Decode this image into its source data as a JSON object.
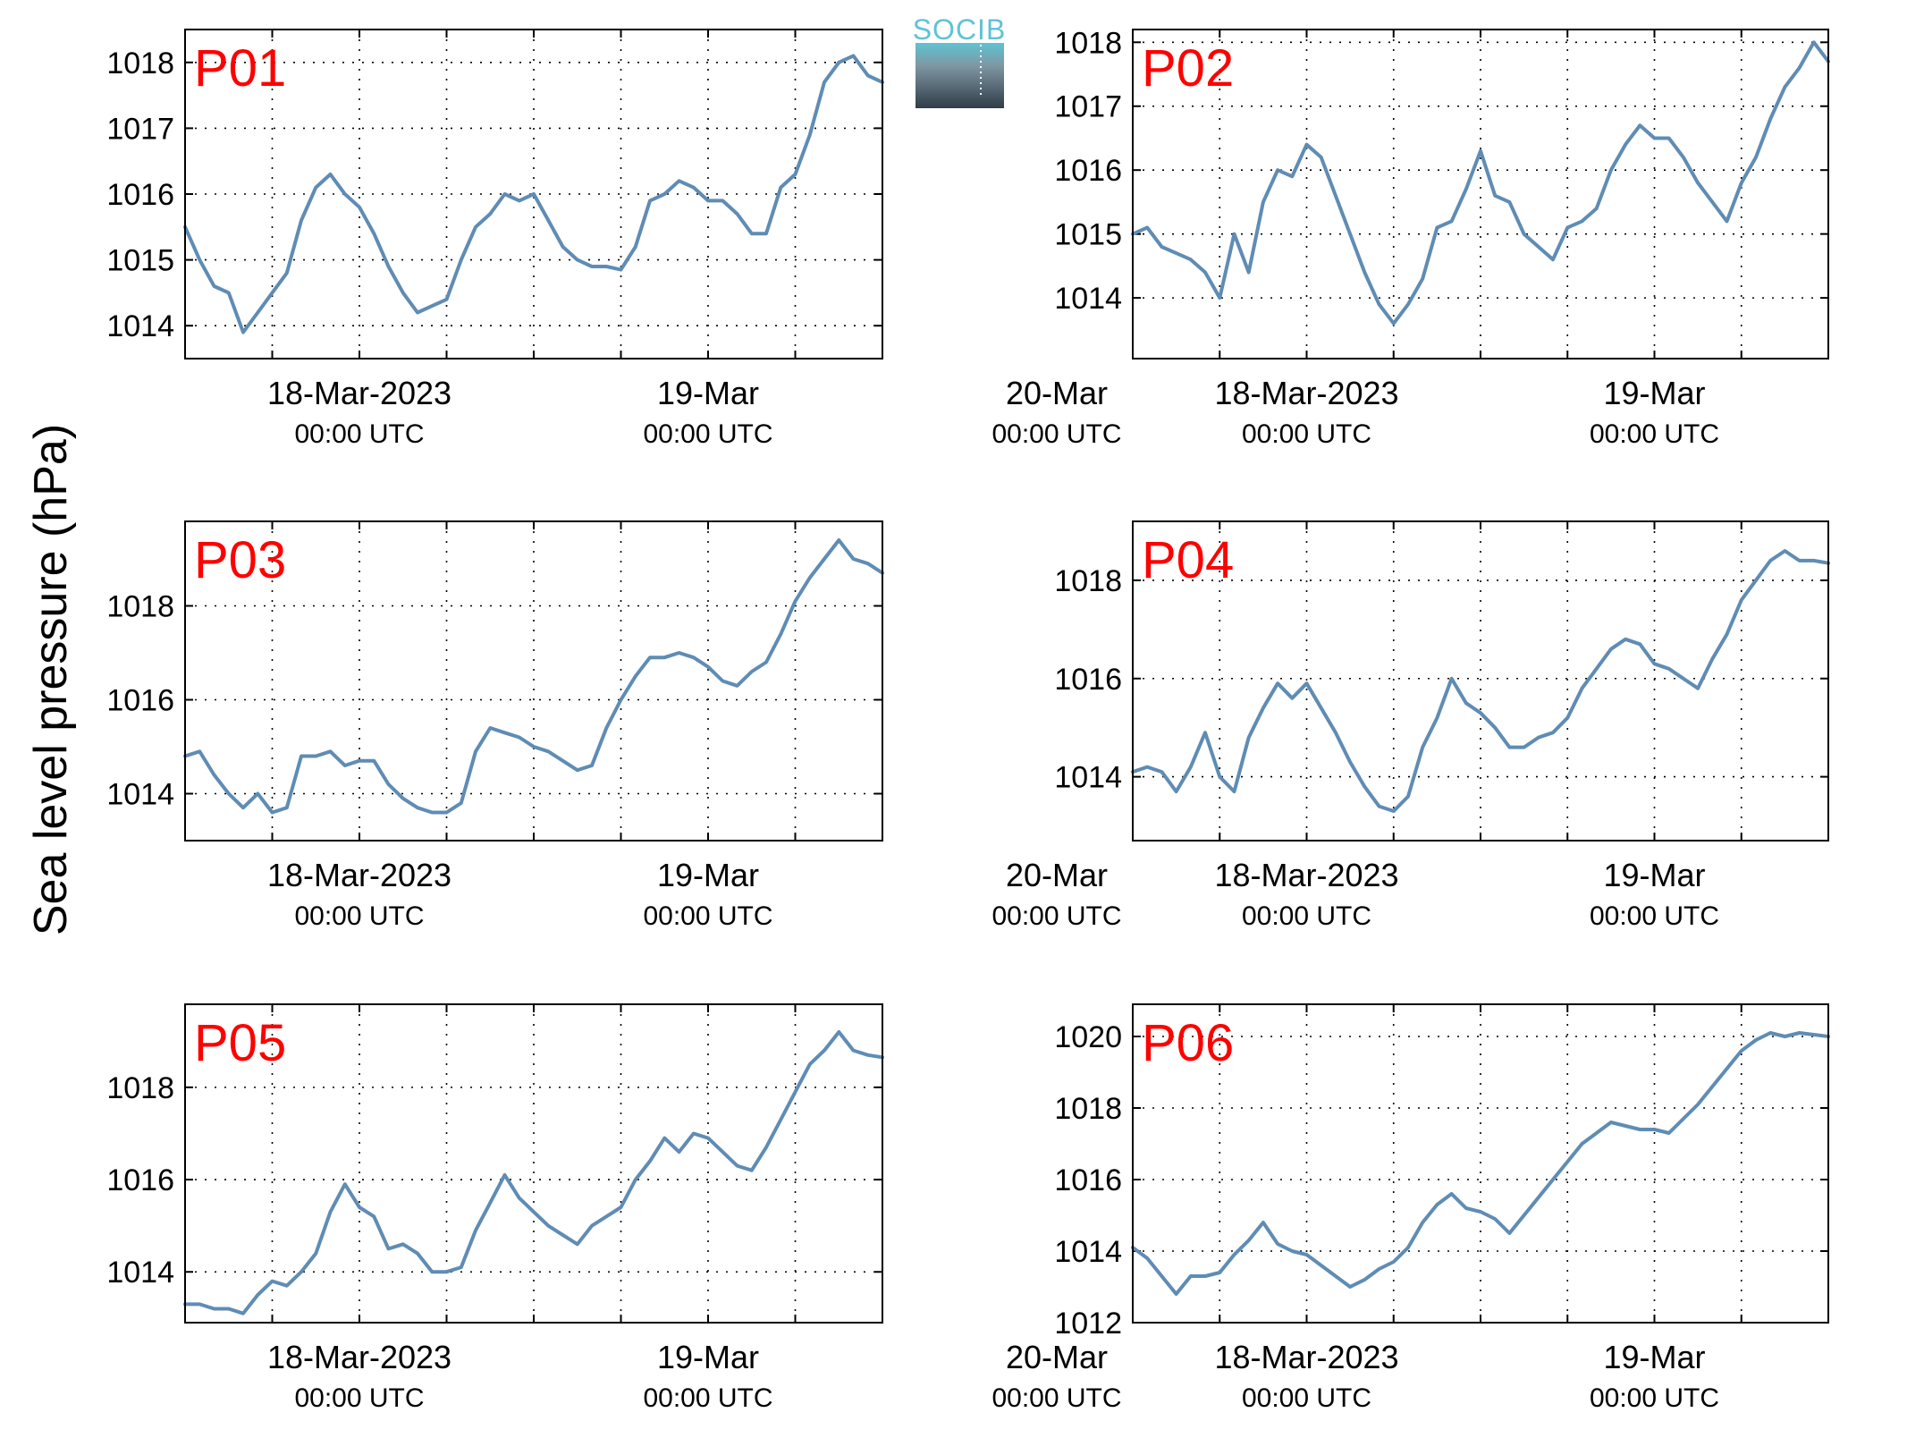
{
  "figure": {
    "ylabel": "Sea level pressure (hPa)",
    "logo_text": "SOCIB",
    "colors": {
      "line": "#5f8cb4",
      "panel_label": "#ff0000",
      "grid": "#000000"
    }
  },
  "chart_data": [
    {
      "type": "line",
      "title": "P01",
      "xlabel": "",
      "ylabel": "Sea level pressure (hPa)",
      "x_unit": "hours since 18-Mar-2023 00:00 UTC",
      "xlim": [
        -12,
        36
      ],
      "ylim": [
        1013.5,
        1018.5
      ],
      "yticks": [
        1014,
        1015,
        1016,
        1017,
        1018
      ],
      "xtick_labels": [
        {
          "x": 0,
          "main": "18-Mar-2023",
          "sub": "00:00 UTC"
        },
        {
          "x": 24,
          "main": "19-Mar",
          "sub": "00:00 UTC"
        },
        {
          "x": 48,
          "main": "20-Mar",
          "sub": "00:00 UTC"
        }
      ],
      "grid": true,
      "series": [
        {
          "x": [
            -12,
            -11,
            -10,
            -9,
            -8,
            -7,
            -6,
            -5,
            -4,
            -3,
            -2,
            -1,
            0,
            1,
            2,
            3,
            4,
            5,
            6,
            7,
            8,
            9,
            10,
            11,
            12,
            13,
            14,
            15,
            16,
            17,
            18,
            19,
            20,
            21,
            22,
            23,
            24,
            25,
            26,
            27,
            28,
            29,
            30,
            31,
            32,
            33,
            34,
            35,
            36
          ],
          "values": [
            1015.5,
            1015.0,
            1014.6,
            1014.5,
            1013.9,
            1014.2,
            1014.5,
            1014.8,
            1015.6,
            1016.1,
            1016.3,
            1016.0,
            1015.8,
            1015.4,
            1014.9,
            1014.5,
            1014.2,
            1014.3,
            1014.4,
            1015.0,
            1015.5,
            1015.7,
            1016.0,
            1015.9,
            1016.0,
            1015.6,
            1015.2,
            1015.0,
            1014.9,
            1014.9,
            1014.85,
            1015.2,
            1015.9,
            1016.0,
            1016.2,
            1016.1,
            1015.9,
            1015.9,
            1015.7,
            1015.4,
            1015.4,
            1016.1,
            1016.3,
            1016.9,
            1017.7,
            1018.0,
            1018.1,
            1017.8,
            1017.7
          ]
        }
      ]
    },
    {
      "type": "line",
      "title": "P02",
      "xlabel": "",
      "ylabel": "",
      "x_unit": "hours since 18-Mar-2023 00:00 UTC",
      "xlim": [
        -12,
        36
      ],
      "ylim": [
        1013.05,
        1018.2
      ],
      "yticks": [
        1014,
        1015,
        1016,
        1017,
        1018
      ],
      "xtick_labels": [
        {
          "x": 0,
          "main": "18-Mar-2023",
          "sub": "00:00 UTC"
        },
        {
          "x": 24,
          "main": "19-Mar",
          "sub": "00:00 UTC"
        },
        {
          "x": 48,
          "main": "20-Mar",
          "sub": "00:00 UTC"
        }
      ],
      "grid": true,
      "series": [
        {
          "x": [
            -12,
            -11,
            -10,
            -9,
            -8,
            -7,
            -6,
            -5,
            -4,
            -3,
            -2,
            -1,
            0,
            1,
            2,
            3,
            4,
            5,
            6,
            7,
            8,
            9,
            10,
            11,
            12,
            13,
            14,
            15,
            16,
            17,
            18,
            19,
            20,
            21,
            22,
            23,
            24,
            25,
            26,
            27,
            28,
            29,
            30,
            31,
            32,
            33,
            34,
            35,
            36
          ],
          "values": [
            1015.0,
            1015.1,
            1014.8,
            1014.7,
            1014.6,
            1014.4,
            1014.0,
            1015.0,
            1014.4,
            1015.5,
            1016.0,
            1015.9,
            1016.4,
            1016.2,
            1015.6,
            1015.0,
            1014.4,
            1013.9,
            1013.6,
            1013.9,
            1014.3,
            1015.1,
            1015.2,
            1015.7,
            1016.3,
            1015.6,
            1015.5,
            1015.0,
            1014.8,
            1014.6,
            1015.1,
            1015.2,
            1015.4,
            1016.0,
            1016.4,
            1016.7,
            1016.5,
            1016.5,
            1016.2,
            1015.8,
            1015.5,
            1015.2,
            1015.8,
            1016.2,
            1016.8,
            1017.3,
            1017.6,
            1018.0,
            1017.7
          ]
        }
      ]
    },
    {
      "type": "line",
      "title": "P03",
      "xlabel": "",
      "ylabel": "",
      "x_unit": "hours since 18-Mar-2023 00:00 UTC",
      "xlim": [
        -12,
        36
      ],
      "ylim": [
        1013.0,
        1019.8
      ],
      "yticks": [
        1014,
        1016,
        1018
      ],
      "xtick_labels": [
        {
          "x": 0,
          "main": "18-Mar-2023",
          "sub": "00:00 UTC"
        },
        {
          "x": 24,
          "main": "19-Mar",
          "sub": "00:00 UTC"
        },
        {
          "x": 48,
          "main": "20-Mar",
          "sub": "00:00 UTC"
        }
      ],
      "grid": true,
      "series": [
        {
          "x": [
            -12,
            -11,
            -10,
            -9,
            -8,
            -7,
            -6,
            -5,
            -4,
            -3,
            -2,
            -1,
            0,
            1,
            2,
            3,
            4,
            5,
            6,
            7,
            8,
            9,
            10,
            11,
            12,
            13,
            14,
            15,
            16,
            17,
            18,
            19,
            20,
            21,
            22,
            23,
            24,
            25,
            26,
            27,
            28,
            29,
            30,
            31,
            32,
            33,
            34,
            35,
            36
          ],
          "values": [
            1014.8,
            1014.9,
            1014.4,
            1014.0,
            1013.7,
            1014.0,
            1013.6,
            1013.7,
            1014.8,
            1014.8,
            1014.9,
            1014.6,
            1014.7,
            1014.7,
            1014.2,
            1013.9,
            1013.7,
            1013.6,
            1013.6,
            1013.8,
            1014.9,
            1015.4,
            1015.3,
            1015.2,
            1015.0,
            1014.9,
            1014.7,
            1014.5,
            1014.6,
            1015.4,
            1016.0,
            1016.5,
            1016.9,
            1016.9,
            1017.0,
            1016.9,
            1016.7,
            1016.4,
            1016.3,
            1016.6,
            1016.8,
            1017.4,
            1018.1,
            1018.6,
            1019.0,
            1019.4,
            1019.0,
            1018.9,
            1018.7
          ]
        }
      ]
    },
    {
      "type": "line",
      "title": "P04",
      "xlabel": "",
      "ylabel": "",
      "x_unit": "hours since 18-Mar-2023 00:00 UTC",
      "xlim": [
        -12,
        36
      ],
      "ylim": [
        1012.7,
        1019.2
      ],
      "yticks": [
        1014,
        1016,
        1018
      ],
      "xtick_labels": [
        {
          "x": 0,
          "main": "18-Mar-2023",
          "sub": "00:00 UTC"
        },
        {
          "x": 24,
          "main": "19-Mar",
          "sub": "00:00 UTC"
        },
        {
          "x": 48,
          "main": "20-Mar",
          "sub": "00:00 UTC"
        }
      ],
      "grid": true,
      "series": [
        {
          "x": [
            -12,
            -11,
            -10,
            -9,
            -8,
            -7,
            -6,
            -5,
            -4,
            -3,
            -2,
            -1,
            0,
            1,
            2,
            3,
            4,
            5,
            6,
            7,
            8,
            9,
            10,
            11,
            12,
            13,
            14,
            15,
            16,
            17,
            18,
            19,
            20,
            21,
            22,
            23,
            24,
            25,
            26,
            27,
            28,
            29,
            30,
            31,
            32,
            33,
            34,
            35,
            36
          ],
          "values": [
            1014.1,
            1014.2,
            1014.1,
            1013.7,
            1014.2,
            1014.9,
            1014.0,
            1013.7,
            1014.8,
            1015.4,
            1015.9,
            1015.6,
            1015.9,
            1015.4,
            1014.9,
            1014.3,
            1013.8,
            1013.4,
            1013.3,
            1013.6,
            1014.6,
            1015.2,
            1016.0,
            1015.5,
            1015.3,
            1015.0,
            1014.6,
            1014.6,
            1014.8,
            1014.9,
            1015.2,
            1015.8,
            1016.2,
            1016.6,
            1016.8,
            1016.7,
            1016.3,
            1016.2,
            1016.0,
            1015.8,
            1016.4,
            1016.9,
            1017.6,
            1018.0,
            1018.4,
            1018.6,
            1018.4,
            1018.4,
            1018.35
          ]
        }
      ]
    },
    {
      "type": "line",
      "title": "P05",
      "xlabel": "",
      "ylabel": "",
      "x_unit": "hours since 18-Mar-2023 00:00 UTC",
      "xlim": [
        -12,
        36
      ],
      "ylim": [
        1012.9,
        1019.8
      ],
      "yticks": [
        1014,
        1016,
        1018
      ],
      "xtick_labels": [
        {
          "x": 0,
          "main": "18-Mar-2023",
          "sub": "00:00 UTC"
        },
        {
          "x": 24,
          "main": "19-Mar",
          "sub": "00:00 UTC"
        },
        {
          "x": 48,
          "main": "20-Mar",
          "sub": "00:00 UTC"
        }
      ],
      "grid": true,
      "series": [
        {
          "x": [
            -12,
            -11,
            -10,
            -9,
            -8,
            -7,
            -6,
            -5,
            -4,
            -3,
            -2,
            -1,
            0,
            1,
            2,
            3,
            4,
            5,
            6,
            7,
            8,
            9,
            10,
            11,
            12,
            13,
            14,
            15,
            16,
            17,
            18,
            19,
            20,
            21,
            22,
            23,
            24,
            25,
            26,
            27,
            28,
            29,
            30,
            31,
            32,
            33,
            34,
            35,
            36
          ],
          "values": [
            1013.3,
            1013.3,
            1013.2,
            1013.2,
            1013.1,
            1013.5,
            1013.8,
            1013.7,
            1014.0,
            1014.4,
            1015.3,
            1015.9,
            1015.4,
            1015.2,
            1014.5,
            1014.6,
            1014.4,
            1014.0,
            1014.0,
            1014.1,
            1014.9,
            1015.5,
            1016.1,
            1015.6,
            1015.3,
            1015.0,
            1014.8,
            1014.6,
            1015.0,
            1015.2,
            1015.4,
            1016.0,
            1016.4,
            1016.9,
            1016.6,
            1017.0,
            1016.9,
            1016.6,
            1016.3,
            1016.2,
            1016.7,
            1017.3,
            1017.9,
            1018.5,
            1018.8,
            1019.2,
            1018.8,
            1018.7,
            1018.65
          ]
        }
      ]
    },
    {
      "type": "line",
      "title": "P06",
      "xlabel": "",
      "ylabel": "",
      "x_unit": "hours since 18-Mar-2023 00:00 UTC",
      "xlim": [
        -12,
        36
      ],
      "ylim": [
        1012.0,
        1020.9
      ],
      "yticks": [
        1012,
        1014,
        1016,
        1018,
        1020
      ],
      "xtick_labels": [
        {
          "x": 0,
          "main": "18-Mar-2023",
          "sub": "00:00 UTC"
        },
        {
          "x": 24,
          "main": "19-Mar",
          "sub": "00:00 UTC"
        },
        {
          "x": 48,
          "main": "20-Mar",
          "sub": "00:00 UTC"
        }
      ],
      "grid": true,
      "series": [
        {
          "x": [
            -12,
            -11,
            -10,
            -9,
            -8,
            -7,
            -6,
            -5,
            -4,
            -3,
            -2,
            -1,
            0,
            1,
            2,
            3,
            4,
            5,
            6,
            7,
            8,
            9,
            10,
            11,
            12,
            13,
            14,
            15,
            16,
            17,
            18,
            19,
            20,
            21,
            22,
            23,
            24,
            25,
            26,
            27,
            28,
            29,
            30,
            31,
            32,
            33,
            34,
            35,
            36
          ],
          "values": [
            1014.1,
            1013.8,
            1013.3,
            1012.8,
            1013.3,
            1013.3,
            1013.4,
            1013.9,
            1014.3,
            1014.8,
            1014.2,
            1014.0,
            1013.9,
            1013.6,
            1013.3,
            1013.0,
            1013.2,
            1013.5,
            1013.7,
            1014.1,
            1014.8,
            1015.3,
            1015.6,
            1015.2,
            1015.1,
            1014.9,
            1014.5,
            1015.0,
            1015.5,
            1016.0,
            1016.5,
            1017.0,
            1017.3,
            1017.6,
            1017.5,
            1017.4,
            1017.4,
            1017.3,
            1017.7,
            1018.1,
            1018.6,
            1019.1,
            1019.6,
            1019.9,
            1020.1,
            1020.0,
            1020.1,
            1020.05,
            1020.0
          ]
        }
      ]
    }
  ]
}
